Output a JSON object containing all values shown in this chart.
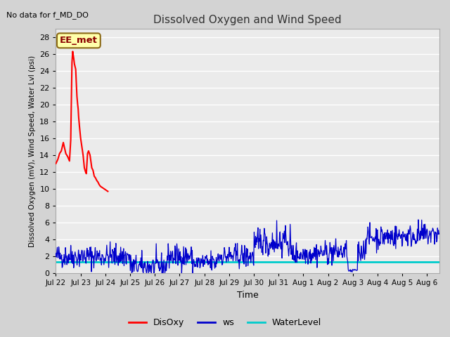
{
  "title": "Dissolved Oxygen and Wind Speed",
  "no_data_label": "No data for f_MD_DO",
  "ylabel": "Dissolved Oxygen (mV), Wind Speed, Water Lvl (psi)",
  "xlabel": "Time",
  "ylim": [
    0,
    29
  ],
  "yticks": [
    0,
    2,
    4,
    6,
    8,
    10,
    12,
    14,
    16,
    18,
    20,
    22,
    24,
    26,
    28
  ],
  "fig_bg_color": "#d3d3d3",
  "plot_bg_color": "#ebebeb",
  "grid_color": "#ffffff",
  "water_level_value": 1.3,
  "annotation_box": "EE_met",
  "annotation_box_facecolor": "#ffffaa",
  "annotation_box_edgecolor": "#8b6914",
  "xtick_labels": [
    "Jul 22",
    "Jul 23",
    "Jul 24",
    "Jul 25",
    "Jul 26",
    "Jul 27",
    "Jul 28",
    "Jul 29",
    "Jul 30",
    "Jul 31",
    "Aug 1",
    "Aug 2",
    "Aug 3",
    "Aug 4",
    "Aug 5",
    "Aug 6"
  ],
  "disoxy_x": [
    0.0,
    0.08,
    0.15,
    0.22,
    0.3,
    0.4,
    0.48,
    0.55,
    0.6,
    0.65,
    0.68,
    0.72,
    0.75,
    0.8,
    0.85,
    0.88,
    0.9,
    0.92,
    0.95,
    1.0,
    1.05,
    1.1,
    1.15,
    1.18,
    1.2,
    1.23,
    1.28,
    1.32,
    1.38,
    1.45,
    1.5,
    1.55,
    1.6,
    1.65,
    1.7,
    1.75,
    1.8,
    1.85,
    1.9,
    1.95,
    2.0,
    2.05,
    2.1
  ],
  "disoxy_y": [
    13.0,
    13.5,
    14.2,
    14.5,
    15.5,
    14.2,
    13.8,
    13.3,
    15.8,
    25.0,
    26.3,
    25.5,
    24.8,
    24.2,
    21.0,
    20.0,
    19.5,
    18.5,
    17.5,
    16.0,
    15.0,
    14.0,
    12.5,
    12.2,
    12.0,
    11.8,
    14.2,
    14.5,
    14.0,
    12.5,
    12.2,
    11.5,
    11.3,
    11.0,
    10.8,
    10.5,
    10.3,
    10.2,
    10.1,
    10.0,
    9.9,
    9.8,
    9.7
  ],
  "ws_seed": 42,
  "n_ws": 800,
  "n_days": 15.5
}
